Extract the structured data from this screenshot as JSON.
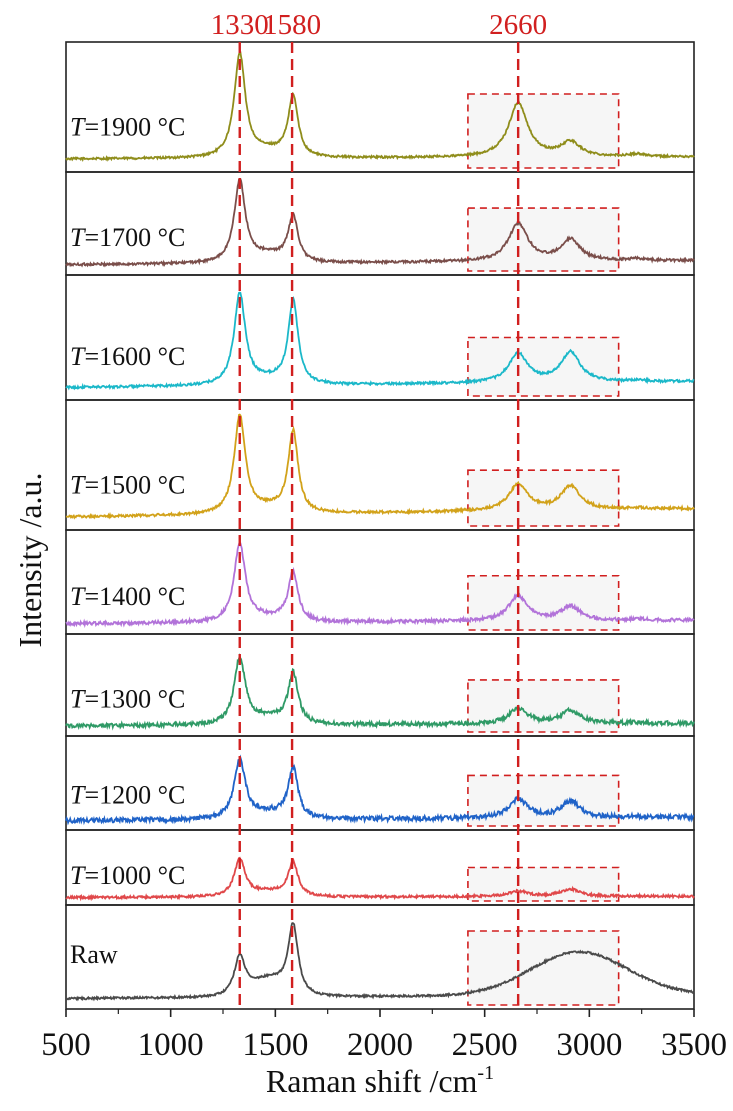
{
  "chart_data": {
    "type": "line",
    "xlabel": "Raman shift /cm",
    "xlabel_sup": "-1",
    "ylabel": "Intensity /a.u.",
    "xlim": [
      500,
      3500
    ],
    "xticks": [
      "500",
      "1000",
      "1500",
      "2000",
      "2500",
      "3000",
      "3500"
    ],
    "peak_markers": [
      {
        "label": "1330",
        "x": 1330
      },
      {
        "label": "1580",
        "x": 1580
      },
      {
        "label": "2660",
        "x": 2660
      }
    ],
    "highlight_region": {
      "x_range": [
        2420,
        3140
      ]
    },
    "series": [
      {
        "name": "T=1900 °C",
        "color": "#8f8d1b",
        "d": 1.0,
        "g": 0.58,
        "g2d": 0.52,
        "g2": 0.14,
        "d_g": 0.06,
        "bg": 0.02,
        "noise": 0.01
      },
      {
        "name": "T=1700 °C",
        "color": "#7a4e4a",
        "d": 1.0,
        "g": 0.55,
        "g2d": 0.46,
        "g2": 0.26,
        "d_g": 0.09,
        "bg": 0.05,
        "noise": 0.015
      },
      {
        "name": "T=1600 °C",
        "color": "#1bb8c9",
        "d": 0.92,
        "g": 0.83,
        "g2d": 0.29,
        "g2": 0.3,
        "d_g": 0.05,
        "bg": 0.06,
        "noise": 0.012
      },
      {
        "name": "T=1500 °C",
        "color": "#d2a21a",
        "d": 0.95,
        "g": 0.78,
        "g2d": 0.25,
        "g2": 0.23,
        "d_g": 0.05,
        "bg": 0.08,
        "noise": 0.012
      },
      {
        "name": "T=1400 °C",
        "color": "#b273d9",
        "d": 0.95,
        "g": 0.58,
        "g2d": 0.3,
        "g2": 0.17,
        "d_g": 0.05,
        "bg": 0.04,
        "noise": 0.02
      },
      {
        "name": "T=1300 °C",
        "color": "#2f9a66",
        "d": 0.82,
        "g": 0.62,
        "g2d": 0.18,
        "g2": 0.16,
        "d_g": 0.08,
        "bg": 0.03,
        "noise": 0.025
      },
      {
        "name": "T=1200 °C",
        "color": "#2063c8",
        "d": 0.8,
        "g": 0.66,
        "g2d": 0.25,
        "g2": 0.22,
        "d_g": 0.08,
        "bg": 0.04,
        "noise": 0.03
      },
      {
        "name": "T=1000 °C",
        "color": "#e0484a",
        "d": 0.62,
        "g": 0.56,
        "g2d": 0.09,
        "g2": 0.12,
        "d_g": 0.08,
        "bg": 0.02,
        "noise": 0.02
      },
      {
        "name": "Raw",
        "color": "#4a4a4a",
        "d": 0.47,
        "g": 0.82,
        "g2d": 0.0,
        "g2": 0.0,
        "d_g": 0.2,
        "bg": 0.05,
        "noise": 0.012,
        "broad": 0.52
      }
    ]
  }
}
